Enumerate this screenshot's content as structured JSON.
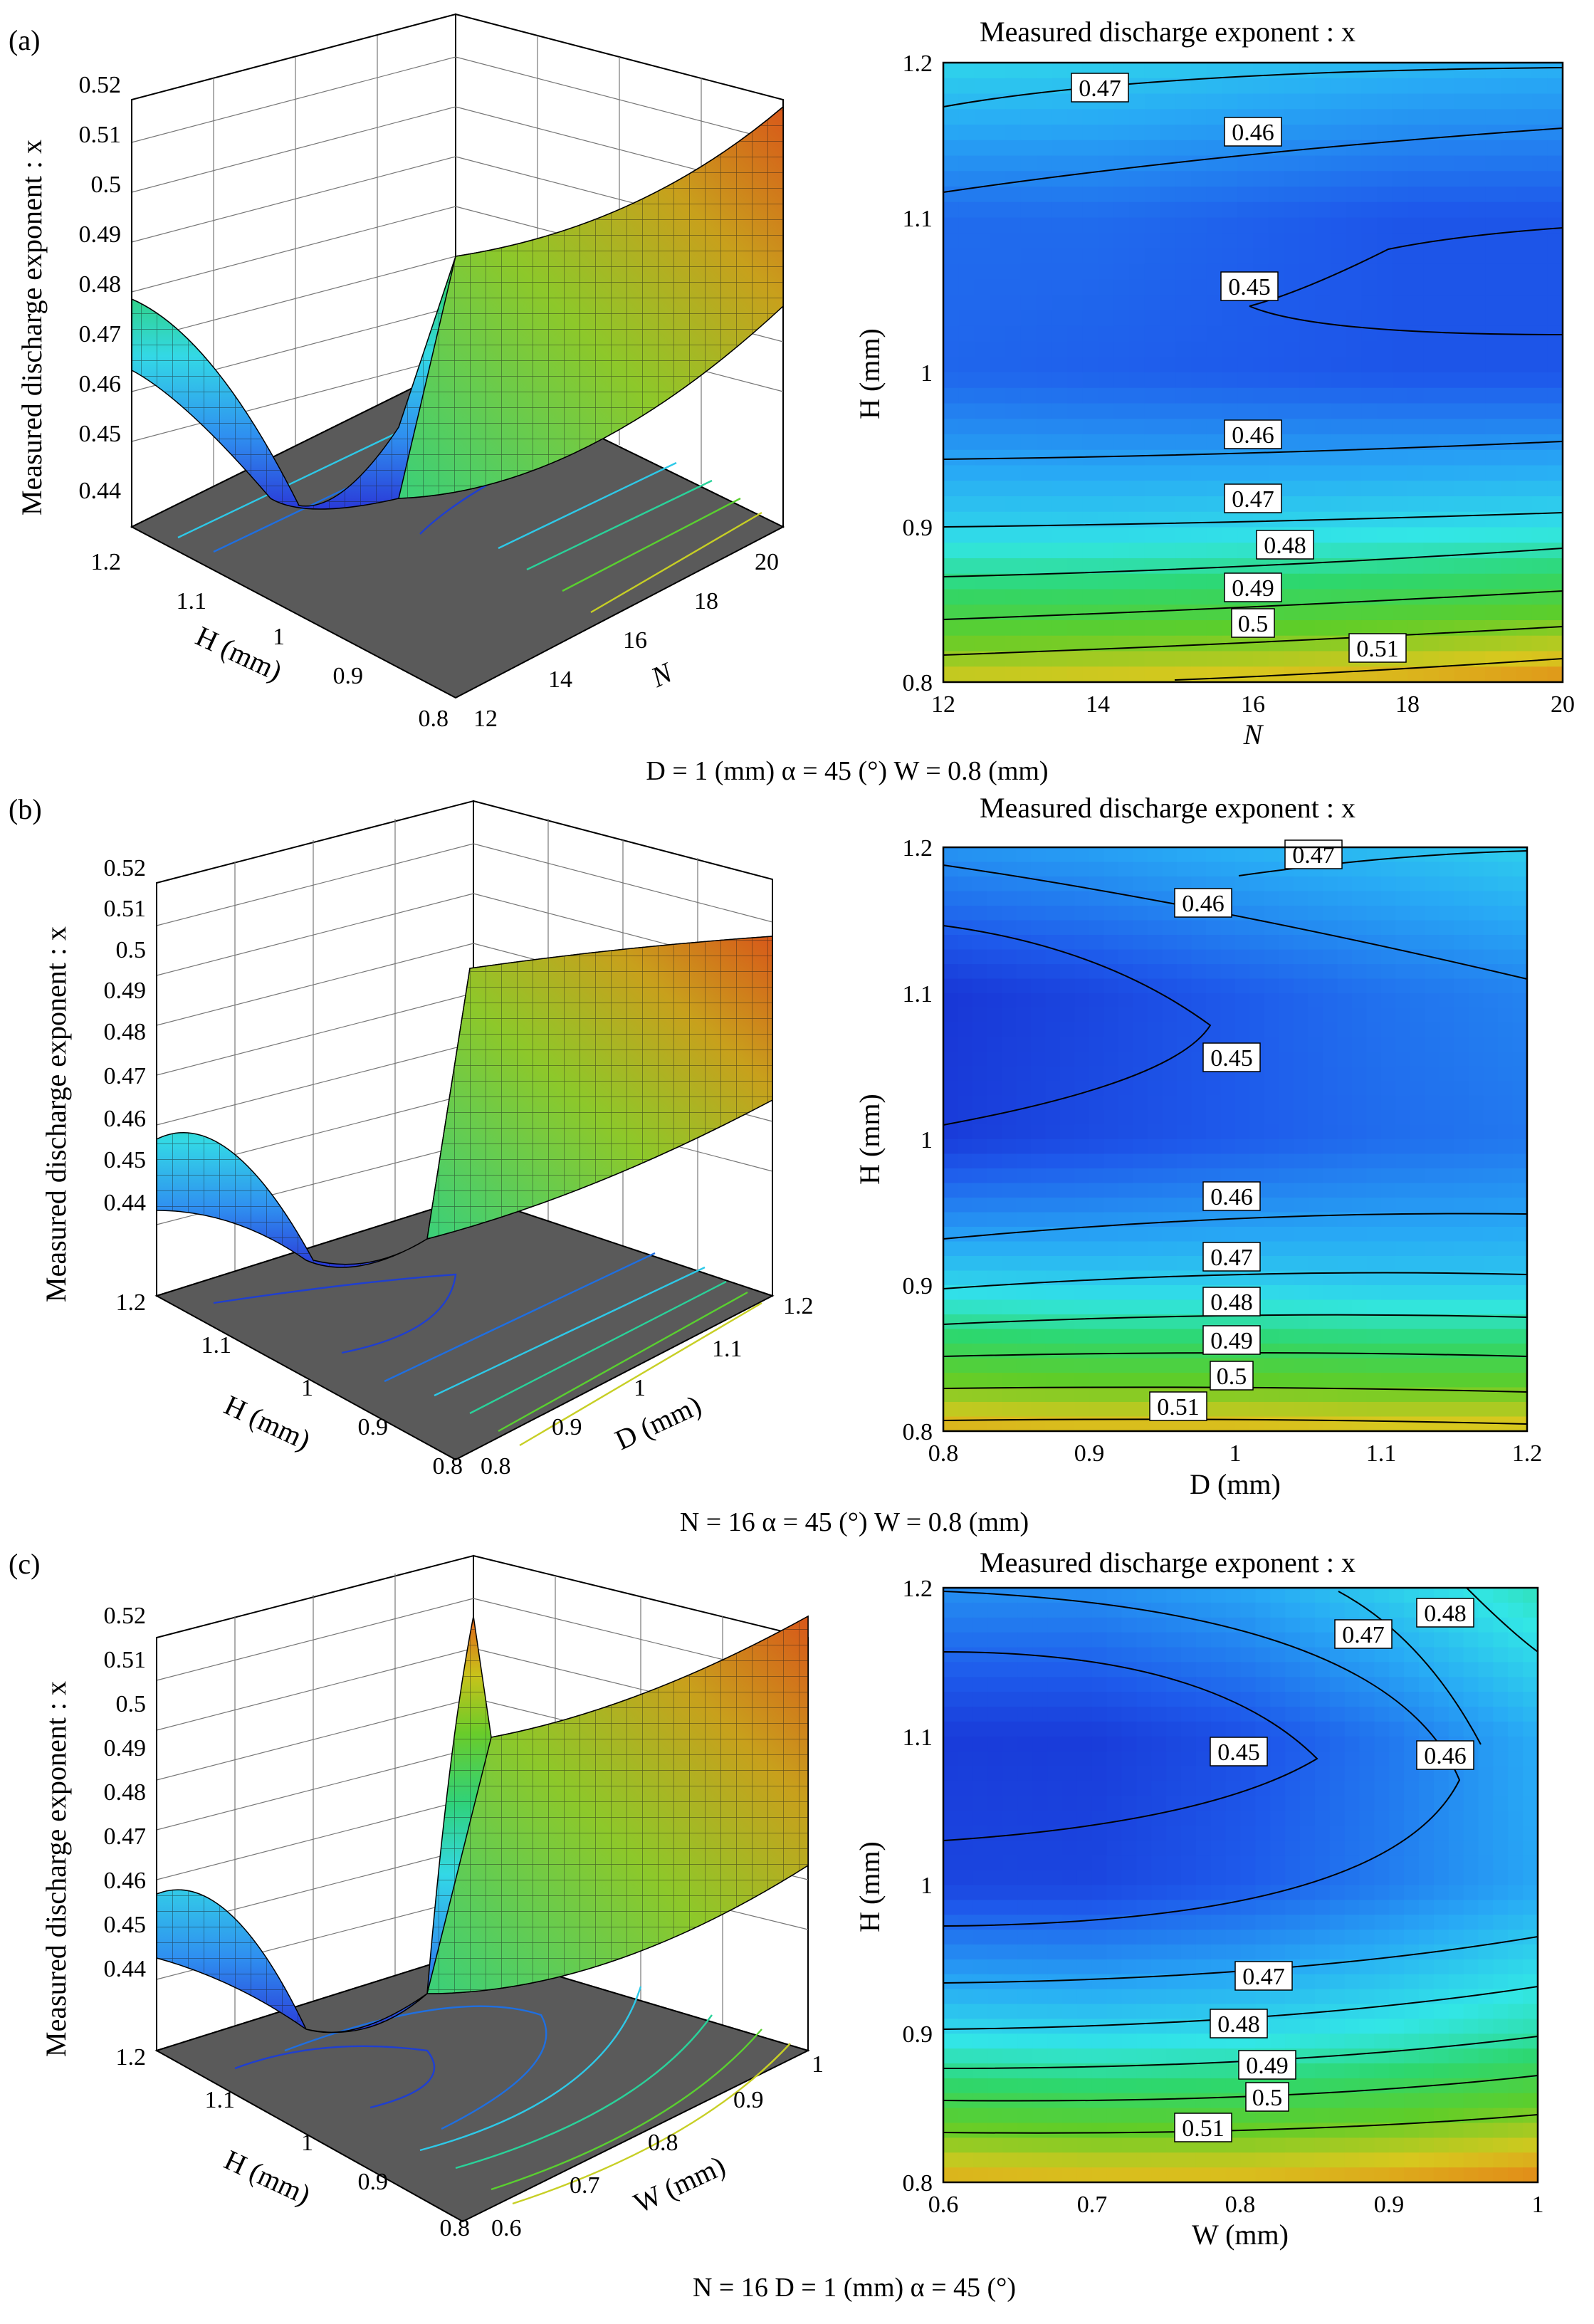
{
  "panels": [
    {
      "label": "(a)",
      "caption": "D = 1 (mm)   α = 45 (°)   W = 0.8 (mm)",
      "surface": {
        "zlabel": "Measured discharge exponent : x",
        "zticks": [
          "0.52",
          "0.51",
          "0.5",
          "0.49",
          "0.48",
          "0.47",
          "0.46",
          "0.45",
          "0.44"
        ],
        "xlabel": "H (mm)",
        "xticks": [
          "1.2",
          "1.1",
          "1",
          "0.9",
          "0.8"
        ],
        "ylabel": "N",
        "yticks": [
          "12",
          "14",
          "16",
          "18",
          "20"
        ]
      },
      "contour": {
        "title": "Measured discharge exponent : x",
        "xlabel": "N",
        "ylabel": "H (mm)",
        "xticks": [
          "12",
          "14",
          "16",
          "18",
          "20"
        ],
        "yticks": [
          "0.8",
          "0.9",
          "1",
          "1.1",
          "1.2"
        ],
        "labels": [
          "0.47",
          "0.46",
          "0.45",
          "0.46",
          "0.47",
          "0.48",
          "0.49",
          "0.5",
          "0.51"
        ]
      }
    },
    {
      "label": "(b)",
      "caption": "N = 16   α = 45 (°)   W = 0.8 (mm)",
      "surface": {
        "zlabel": "Measured discharge exponent : x",
        "zticks": [
          "0.52",
          "0.51",
          "0.5",
          "0.49",
          "0.48",
          "0.47",
          "0.46",
          "0.45",
          "0.44"
        ],
        "xlabel": "H (mm)",
        "xticks": [
          "1.2",
          "1.1",
          "1",
          "0.9",
          "0.8"
        ],
        "ylabel": "D (mm)",
        "yticks": [
          "0.8",
          "0.9",
          "1",
          "1.1",
          "1.2"
        ]
      },
      "contour": {
        "title": "Measured discharge exponent : x",
        "xlabel": "D (mm)",
        "ylabel": "H (mm)",
        "xticks": [
          "0.8",
          "0.9",
          "1",
          "1.1",
          "1.2"
        ],
        "yticks": [
          "0.8",
          "0.9",
          "1",
          "1.1",
          "1.2"
        ],
        "labels": [
          "0.47",
          "0.46",
          "0.45",
          "0.46",
          "0.47",
          "0.48",
          "0.49",
          "0.5",
          "0.51"
        ]
      }
    },
    {
      "label": "(c)",
      "caption": "N = 16   D = 1 (mm)   α = 45 (°)",
      "surface": {
        "zlabel": "Measured discharge exponent : x",
        "zticks": [
          "0.52",
          "0.51",
          "0.5",
          "0.49",
          "0.48",
          "0.47",
          "0.46",
          "0.45",
          "0.44"
        ],
        "xlabel": "H (mm)",
        "xticks": [
          "1.2",
          "1.1",
          "1",
          "0.9",
          "0.8"
        ],
        "ylabel": "W (mm)",
        "yticks": [
          "0.6",
          "0.7",
          "0.8",
          "0.9",
          "1"
        ]
      },
      "contour": {
        "title": "Measured discharge exponent : x",
        "xlabel": "W (mm)",
        "ylabel": "H (mm)",
        "xticks": [
          "0.6",
          "0.7",
          "0.8",
          "0.9",
          "1"
        ],
        "yticks": [
          "0.8",
          "0.9",
          "1",
          "1.1",
          "1.2"
        ],
        "labels": [
          "0.48",
          "0.47",
          "0.45",
          "0.46",
          "0.47",
          "0.48",
          "0.49",
          "0.5",
          "0.51"
        ]
      }
    }
  ],
  "chart_data": [
    {
      "type": "heatmap",
      "title": "Measured discharge exponent : x",
      "xlabel": "N",
      "ylabel": "H (mm)",
      "xlim": [
        12,
        20
      ],
      "ylim": [
        0.8,
        1.2
      ],
      "zrange": [
        0.44,
        0.52
      ],
      "contour_levels": [
        0.45,
        0.46,
        0.47,
        0.48,
        0.49,
        0.5,
        0.51
      ],
      "fixed": "D = 1 (mm)   α = 45 (°)   W = 0.8 (mm)",
      "x_samples": [
        12,
        14,
        16,
        18,
        20
      ],
      "y_samples": [
        0.8,
        0.9,
        1.0,
        1.1,
        1.2
      ],
      "z_grid": [
        [
          0.508,
          0.509,
          0.51,
          0.512,
          0.515
        ],
        [
          0.472,
          0.472,
          0.473,
          0.474,
          0.475
        ],
        [
          0.454,
          0.453,
          0.452,
          0.451,
          0.451
        ],
        [
          0.455,
          0.455,
          0.453,
          0.451,
          0.451
        ],
        [
          0.473,
          0.472,
          0.47,
          0.468,
          0.467
        ]
      ]
    },
    {
      "type": "heatmap",
      "title": "Measured discharge exponent : x",
      "xlabel": "D (mm)",
      "ylabel": "H (mm)",
      "xlim": [
        0.8,
        1.2
      ],
      "ylim": [
        0.8,
        1.2
      ],
      "zrange": [
        0.44,
        0.52
      ],
      "contour_levels": [
        0.45,
        0.46,
        0.47,
        0.48,
        0.49,
        0.5,
        0.51
      ],
      "fixed": "N = 16   α = 45 (°)   W = 0.8 (mm)",
      "x_samples": [
        0.8,
        0.9,
        1.0,
        1.1,
        1.2
      ],
      "y_samples": [
        0.8,
        0.9,
        1.0,
        1.1,
        1.2
      ],
      "z_grid": [
        [
          0.512,
          0.511,
          0.511,
          0.51,
          0.51
        ],
        [
          0.473,
          0.472,
          0.472,
          0.471,
          0.471
        ],
        [
          0.446,
          0.449,
          0.452,
          0.455,
          0.457
        ],
        [
          0.445,
          0.448,
          0.452,
          0.456,
          0.459
        ],
        [
          0.462,
          0.464,
          0.467,
          0.469,
          0.472
        ]
      ]
    },
    {
      "type": "heatmap",
      "title": "Measured discharge exponent : x",
      "xlabel": "W (mm)",
      "ylabel": "H (mm)",
      "xlim": [
        0.6,
        1.0
      ],
      "ylim": [
        0.8,
        1.2
      ],
      "zrange": [
        0.44,
        0.52
      ],
      "contour_levels": [
        0.45,
        0.46,
        0.47,
        0.48,
        0.49,
        0.5,
        0.51
      ],
      "fixed": "N = 16   D = 1 (mm)   α = 45 (°)",
      "x_samples": [
        0.6,
        0.7,
        0.8,
        0.9,
        1.0
      ],
      "y_samples": [
        0.8,
        0.9,
        1.0,
        1.1,
        1.2
      ],
      "z_grid": [
        [
          0.512,
          0.511,
          0.511,
          0.513,
          0.516
        ],
        [
          0.474,
          0.473,
          0.474,
          0.477,
          0.481
        ],
        [
          0.448,
          0.448,
          0.452,
          0.458,
          0.465
        ],
        [
          0.446,
          0.446,
          0.45,
          0.457,
          0.466
        ],
        [
          0.461,
          0.461,
          0.465,
          0.472,
          0.48
        ]
      ]
    }
  ]
}
